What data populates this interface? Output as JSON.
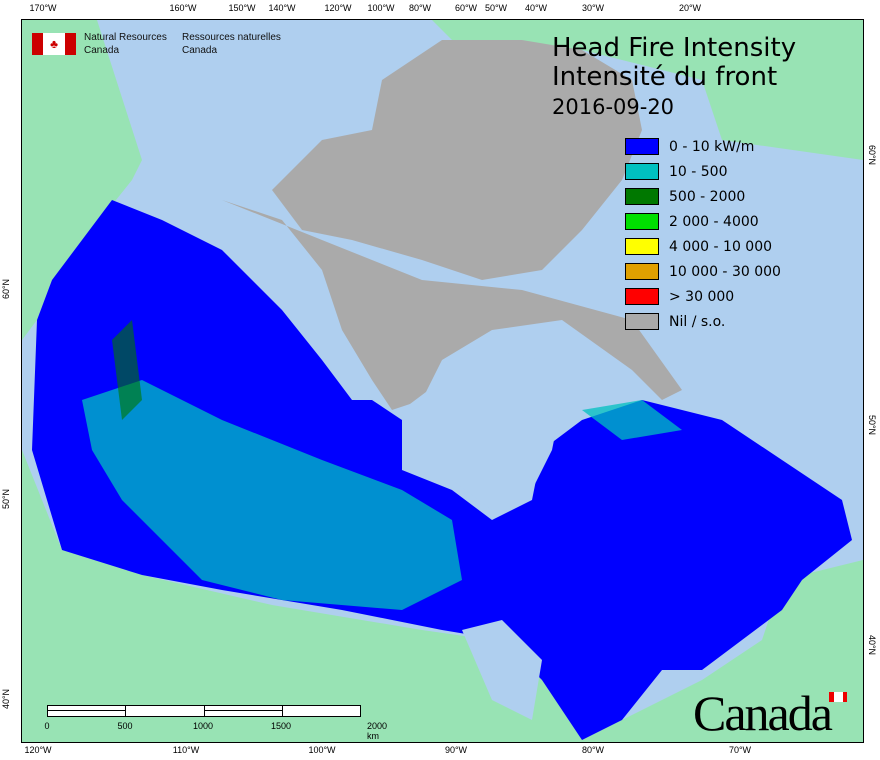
{
  "header": {
    "org_en": "Natural Resources Canada",
    "org_fr": "Ressources naturelles Canada"
  },
  "title": {
    "en": "Head Fire Intensity",
    "fr": "Intensité du front",
    "date": "2016-09-20"
  },
  "legend": [
    {
      "label": "0 - 10 kW/m",
      "color": "#0000ff"
    },
    {
      "label": "10 - 500",
      "color": "#00c0c0"
    },
    {
      "label": "500 - 2000",
      "color": "#007800"
    },
    {
      "label": "2 000 - 4000",
      "color": "#00e000"
    },
    {
      "label": "4 000 - 10 000",
      "color": "#ffff00"
    },
    {
      "label": "10 000 - 30 000",
      "color": "#e0a000"
    },
    {
      "label": "> 30 000",
      "color": "#ff0000"
    },
    {
      "label": "Nil / s.o.",
      "color": "#aaaaaa"
    }
  ],
  "graticule": {
    "top": [
      "170°W",
      "160°W",
      "150°W",
      "140°W",
      "120°W",
      "100°W",
      "80°W",
      "60°W",
      "50°W",
      "40°W",
      "30°W",
      "20°W"
    ],
    "bottom": [
      "120°W",
      "110°W",
      "100°W",
      "90°W",
      "80°W",
      "70°W"
    ],
    "left": [
      "60°N",
      "50°N",
      "40°N"
    ],
    "right": [
      "60°N",
      "50°N",
      "40°N"
    ]
  },
  "scale_bar": {
    "labels": [
      "0",
      "500",
      "1000",
      "1500",
      "2000 km"
    ]
  },
  "wordmark": "Canada",
  "colors": {
    "water": "#afcfef",
    "foreign_land": "#98e3b4"
  }
}
